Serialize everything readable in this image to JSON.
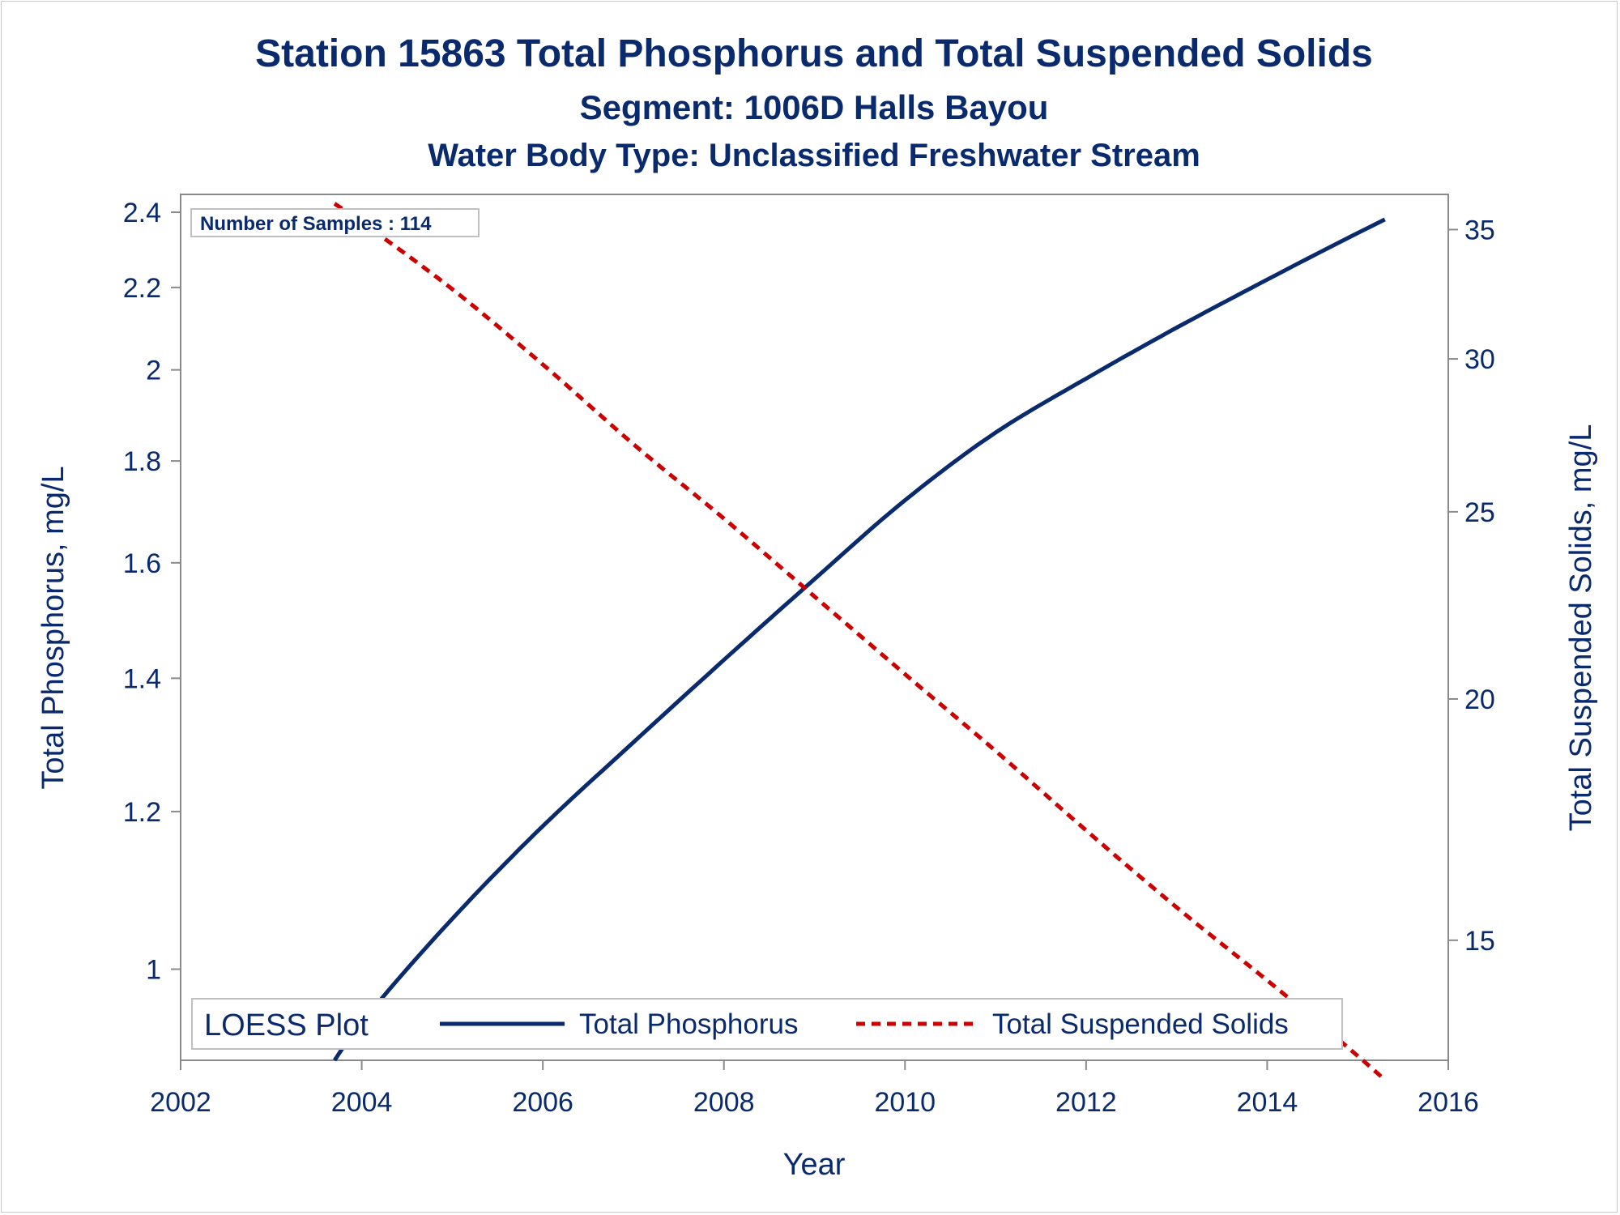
{
  "chart_data": {
    "type": "line",
    "title": "Station 15863  Total Phosphorus and Total Suspended Solids",
    "subtitle": "Segment: 1006D  Halls Bayou",
    "subtitle2": "Water Body Type: Unclassified Freshwater Stream",
    "xlabel": "Year",
    "ylabel_left": "Total Phosphorus, mg/L",
    "ylabel_right": "Total Suspended Solids, mg/L",
    "xlim": [
      2002,
      2016
    ],
    "ylim_left": [
      0.9,
      2.45
    ],
    "ylim_right": [
      13,
      36.5
    ],
    "y_scale": "log",
    "x_ticks": [
      "2002",
      "2004",
      "2006",
      "2008",
      "2010",
      "2012",
      "2014",
      "2016"
    ],
    "y_left_ticks": [
      "1",
      "1.2",
      "1.4",
      "1.6",
      "1.8",
      "2",
      "2.2",
      "2.4"
    ],
    "y_right_ticks": [
      "15",
      "20",
      "25",
      "30",
      "35"
    ],
    "annotation": "Number of Samples : 114",
    "legend": {
      "title": "LOESS Plot",
      "placement": "bottom-inside"
    },
    "series": [
      {
        "name": "Total Phosphorus",
        "axis": "left",
        "color": "#0a2a6e",
        "style": "solid",
        "x": [
          2003.7,
          2004,
          2005,
          2006,
          2007,
          2008,
          2009,
          2010,
          2011,
          2012,
          2013,
          2014,
          2015.3
        ],
        "y": [
          0.9,
          0.94,
          1.06,
          1.18,
          1.3,
          1.43,
          1.57,
          1.72,
          1.86,
          1.98,
          2.1,
          2.22,
          2.38
        ]
      },
      {
        "name": "Total Suspended Solids",
        "axis": "right",
        "color": "#cc0000",
        "style": "dashed",
        "x": [
          2003.7,
          2004,
          2005,
          2006,
          2007,
          2008,
          2009,
          2010,
          2011,
          2012,
          2013,
          2014,
          2015.3
        ],
        "y": [
          36.1,
          35.3,
          32.6,
          29.8,
          27.1,
          24.8,
          22.6,
          20.6,
          18.8,
          17.1,
          15.6,
          14.3,
          12.7
        ]
      }
    ]
  }
}
